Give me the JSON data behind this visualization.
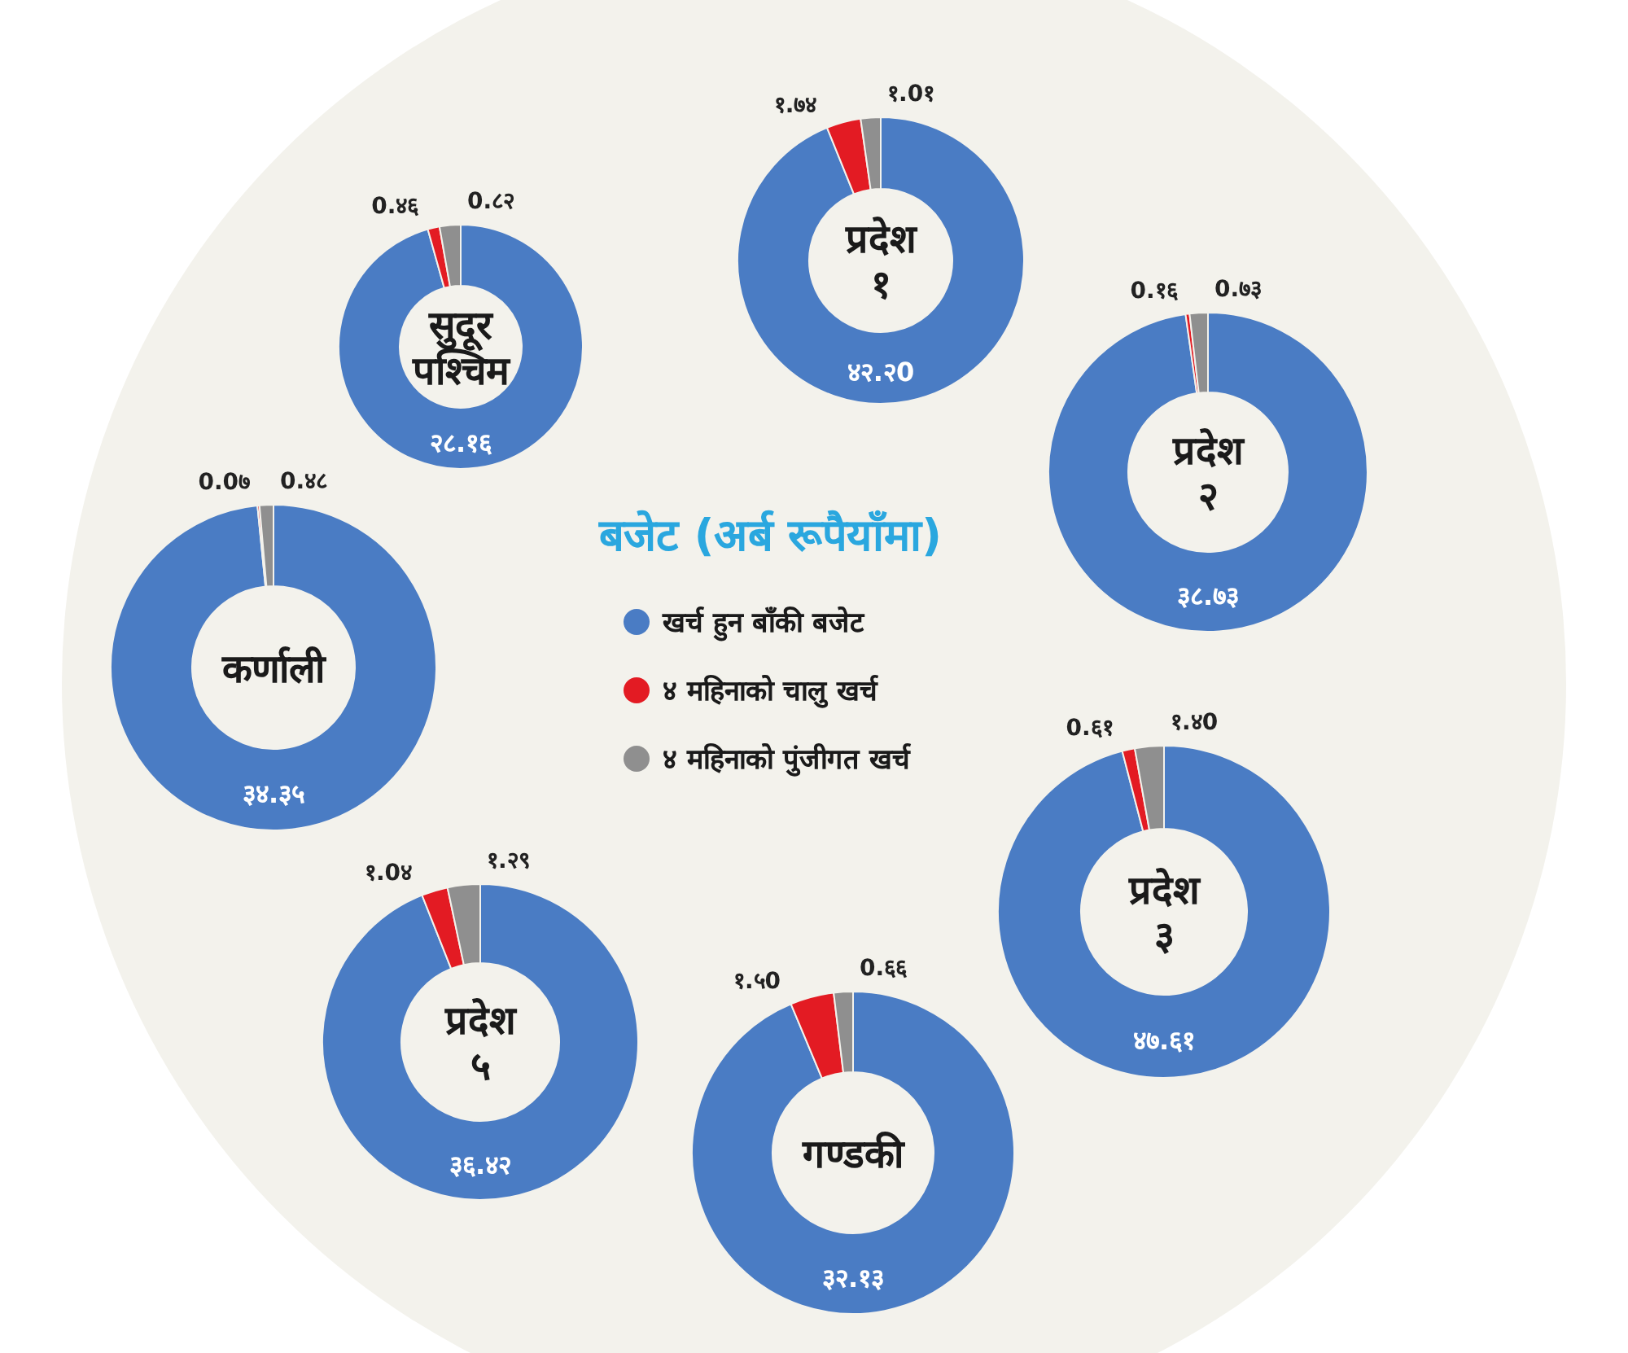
{
  "chart_data": [
    {
      "type": "donut",
      "title": "प्रदेश १",
      "categories": [
        "खर्च हुन बाँकी बजेट",
        "४ महिनाको चालु खर्च",
        "४ महिनाको पुंजीगत खर्च"
      ],
      "values": [
        42.2,
        1.74,
        1.01
      ],
      "colors": [
        "#4a7cc4",
        "#e31b23",
        "#8f8f8f"
      ],
      "value_labels": [
        "४२.२0",
        "१.७४",
        "१.0१"
      ],
      "legend": "center",
      "legend_title": "बजेट (अर्ब रूपैयाँमा)"
    },
    {
      "type": "donut",
      "title": "सुदूर पश्चिम",
      "categories": [
        null,
        null,
        null
      ],
      "values": [
        28.16,
        0.46,
        0.82
      ],
      "colors": [
        "#4a7cc4",
        "#e31b23",
        "#8f8f8f"
      ],
      "value_labels": [
        "२८.१६",
        "0.४६",
        "0.८२"
      ]
    },
    {
      "type": "donut",
      "title": "प्रदेश २",
      "categories": [
        null,
        null,
        null
      ],
      "values": [
        38.73,
        0.16,
        0.73
      ],
      "colors": [
        "#4a7cc4",
        "#e31b23",
        "#8f8f8f"
      ],
      "value_labels": [
        "३८.७३",
        "0.१६",
        "0.७३"
      ]
    },
    {
      "type": "donut",
      "title": "कर्णाली",
      "categories": [
        null,
        null,
        null
      ],
      "values": [
        34.35,
        0.07,
        0.48
      ],
      "colors": [
        "#4a7cc4",
        "#e31b23",
        "#8f8f8f"
      ],
      "value_labels": [
        "३४.३५",
        "0.0७",
        "0.४८"
      ]
    },
    {
      "type": "donut",
      "title": "प्रदेश ३",
      "categories": [
        null,
        null,
        null
      ],
      "values": [
        47.61,
        0.61,
        1.4
      ],
      "colors": [
        "#4a7cc4",
        "#e31b23",
        "#8f8f8f"
      ],
      "value_labels": [
        "४७.६१",
        "0.६१",
        "१.४0"
      ]
    },
    {
      "type": "donut",
      "title": "प्रदेश ५",
      "categories": [
        null,
        null,
        null
      ],
      "values": [
        36.42,
        1.04,
        1.29
      ],
      "colors": [
        "#4a7cc4",
        "#e31b23",
        "#8f8f8f"
      ],
      "value_labels": [
        "३६.४२",
        "१.0४",
        "१.२९"
      ]
    },
    {
      "type": "donut",
      "title": "गण्डकी",
      "categories": [
        null,
        null,
        null
      ],
      "values": [
        32.13,
        1.5,
        0.66
      ],
      "colors": [
        "#4a7cc4",
        "#e31b23",
        "#8f8f8f"
      ],
      "value_labels": [
        "३२.१३",
        "१.५0",
        "0.६६"
      ]
    }
  ]
}
